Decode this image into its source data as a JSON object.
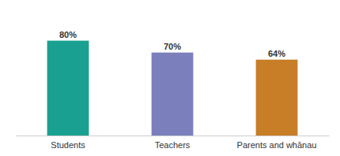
{
  "chart_data": {
    "type": "bar",
    "categories": [
      "Students",
      "Teachers",
      "Parents and whānau"
    ],
    "values": [
      80,
      70,
      64
    ],
    "value_labels": [
      "80%",
      "70%",
      "64%"
    ],
    "colors": [
      "#1aa090",
      "#7b7fbc",
      "#c87d27"
    ],
    "ylim": [
      0,
      105
    ],
    "data_labels": true,
    "tick_labels": "x",
    "grid": false
  }
}
